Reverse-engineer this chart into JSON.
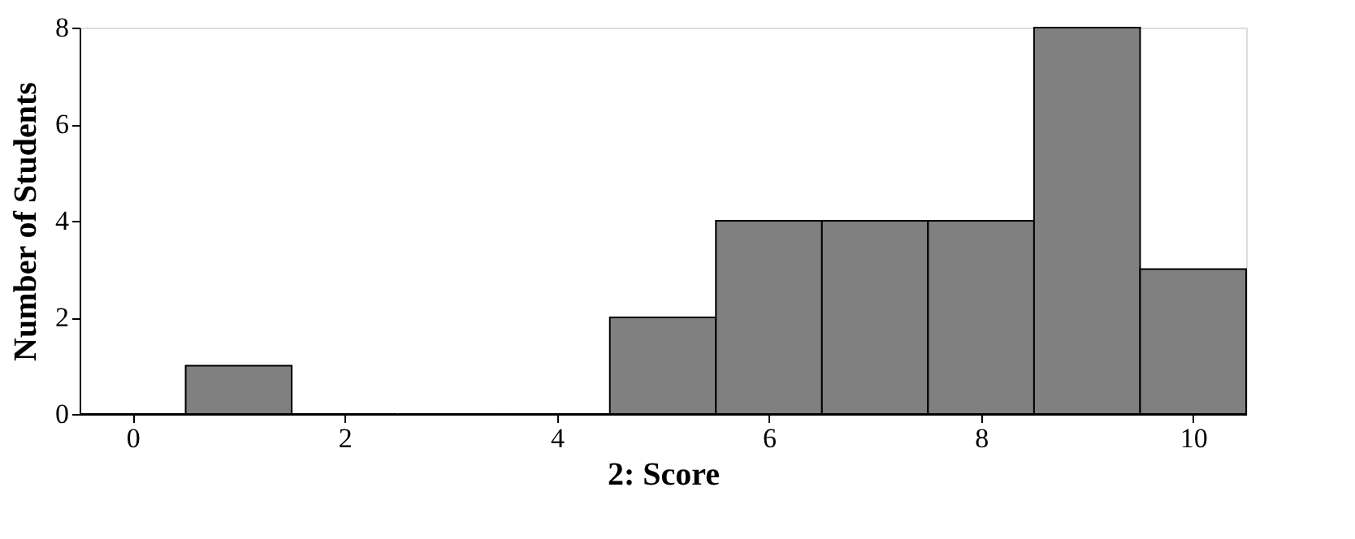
{
  "chart_data": {
    "type": "histogram",
    "xlabel": "2: Score",
    "ylabel": "Number of Students",
    "bins": [
      -0.5,
      0.5,
      1.5,
      2.5,
      3.5,
      4.5,
      5.5,
      6.5,
      7.5,
      8.5,
      9.5,
      10.5
    ],
    "values": [
      0,
      1,
      0,
      0,
      0,
      2,
      4,
      4,
      4,
      8,
      3
    ],
    "color": "#808080",
    "xlim": [
      -0.5,
      10.5
    ],
    "xticks": [
      0,
      2,
      4,
      6,
      8,
      10
    ],
    "ylim": [
      0,
      8
    ],
    "yticks": [
      0,
      2,
      4,
      6,
      8
    ],
    "grid": false
  }
}
